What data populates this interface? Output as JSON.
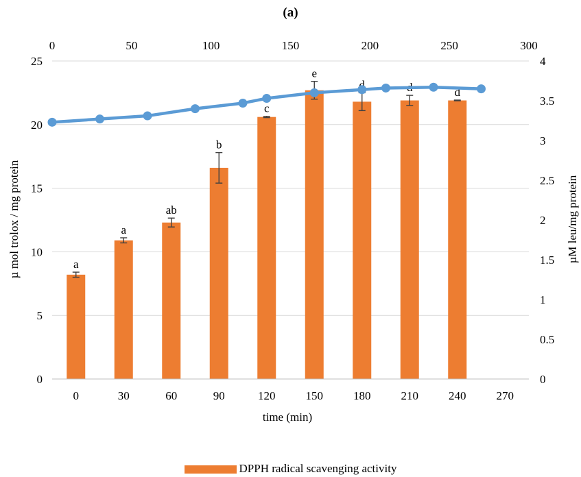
{
  "chart_data": {
    "type": "bar+line",
    "title": "(a)",
    "xlabel": "time (min)",
    "ylabel_left": "µ mol trolox / mg protein",
    "ylabel_right": "µM leu/mg protein",
    "categories": [
      "0",
      "30",
      "60",
      "90",
      "120",
      "150",
      "180",
      "210",
      "240",
      "270"
    ],
    "bar_series": {
      "name": "DPPH radical scavenging activity",
      "color": "#ED7D31",
      "values": [
        8.2,
        10.9,
        12.3,
        16.6,
        20.6,
        22.7,
        21.8,
        21.9,
        21.9,
        null
      ],
      "errors": [
        0.2,
        0.2,
        0.35,
        1.2,
        0.05,
        0.7,
        0.7,
        0.4,
        0.03,
        null
      ],
      "letters": [
        "a",
        "a",
        "ab",
        "b",
        "c",
        "e",
        "d",
        "d",
        "d",
        ""
      ]
    },
    "line_series": {
      "color": "#5B9BD5",
      "x": [
        0,
        30,
        60,
        90,
        120,
        135,
        165,
        195,
        210,
        240,
        270
      ],
      "y": [
        3.23,
        3.27,
        3.31,
        3.4,
        3.47,
        3.53,
        3.6,
        3.64,
        3.66,
        3.67,
        3.65
      ]
    },
    "left_axis": {
      "ylim": [
        0,
        25
      ],
      "ticks": [
        "0",
        "5",
        "10",
        "15",
        "20",
        "25"
      ]
    },
    "right_axis": {
      "ylim": [
        0,
        4
      ],
      "ticks": [
        "0",
        "0.5",
        "1",
        "1.5",
        "2",
        "2.5",
        "3",
        "3.5",
        "4"
      ]
    },
    "top_axis": {
      "xlim": [
        0,
        300
      ],
      "ticks": [
        "0",
        "50",
        "100",
        "150",
        "200",
        "250",
        "300"
      ]
    },
    "grid": true,
    "legend_position": "bottom"
  }
}
